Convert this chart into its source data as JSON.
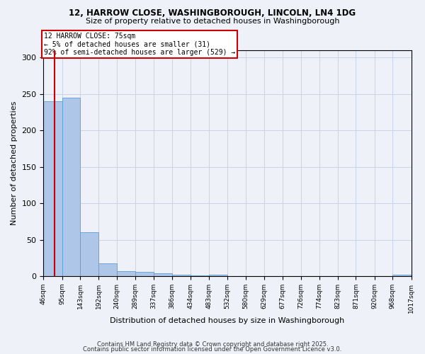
{
  "title1": "12, HARROW CLOSE, WASHINGBOROUGH, LINCOLN, LN4 1DG",
  "title2": "Size of property relative to detached houses in Washingborough",
  "xlabel": "Distribution of detached houses by size in Washingborough",
  "ylabel": "Number of detached properties",
  "bin_edges": [
    46,
    95,
    143,
    192,
    240,
    289,
    337,
    386,
    434,
    483,
    532,
    580,
    629,
    677,
    726,
    774,
    823,
    871,
    920,
    968,
    1017
  ],
  "bar_heights": [
    240,
    245,
    60,
    18,
    7,
    6,
    4,
    2,
    1,
    2,
    0,
    0,
    0,
    0,
    0,
    0,
    0,
    0,
    0,
    2
  ],
  "bar_color": "#aec6e8",
  "bar_edge_color": "#5a9fd4",
  "property_size": 75,
  "red_line_color": "#cc0000",
  "annotation_line1": "12 HARROW CLOSE: 75sqm",
  "annotation_line2": "← 5% of detached houses are smaller (31)",
  "annotation_line3": "92% of semi-detached houses are larger (529) →",
  "annotation_box_color": "#ffffff",
  "annotation_box_edge": "#cc0000",
  "ylim": [
    0,
    310
  ],
  "yticks": [
    0,
    50,
    100,
    150,
    200,
    250,
    300
  ],
  "footer1": "Contains HM Land Registry data © Crown copyright and database right 2025.",
  "footer2": "Contains public sector information licensed under the Open Government Licence v3.0.",
  "bg_color": "#eef2f8",
  "grid_color": "#c8d4e8"
}
